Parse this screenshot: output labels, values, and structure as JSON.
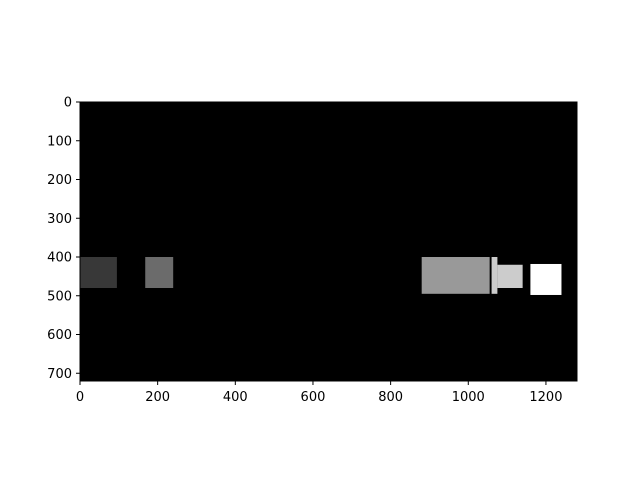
{
  "chart_data": {
    "type": "heatmap",
    "title": "",
    "xlabel": "",
    "ylabel": "",
    "xlim": [
      0,
      1280
    ],
    "ylim": [
      720,
      0
    ],
    "x_ticks": [
      "0",
      "200",
      "400",
      "600",
      "800",
      "1000",
      "1200"
    ],
    "y_ticks": [
      "0",
      "100",
      "200",
      "300",
      "400",
      "500",
      "600",
      "700"
    ],
    "grid": false,
    "background_value": 0,
    "colormap": "gray",
    "regions": [
      {
        "x": [
          0,
          95
        ],
        "y": [
          400,
          480
        ],
        "value": 0.22
      },
      {
        "x": [
          168,
          240
        ],
        "y": [
          400,
          480
        ],
        "value": 0.42
      },
      {
        "x": [
          880,
          1055
        ],
        "y": [
          400,
          495
        ],
        "value": 0.6
      },
      {
        "x": [
          1060,
          1075
        ],
        "y": [
          400,
          495
        ],
        "value": 0.8
      },
      {
        "x": [
          1075,
          1140
        ],
        "y": [
          420,
          480
        ],
        "value": 0.8
      },
      {
        "x": [
          1160,
          1240
        ],
        "y": [
          418,
          498
        ],
        "value": 1.0
      }
    ]
  }
}
